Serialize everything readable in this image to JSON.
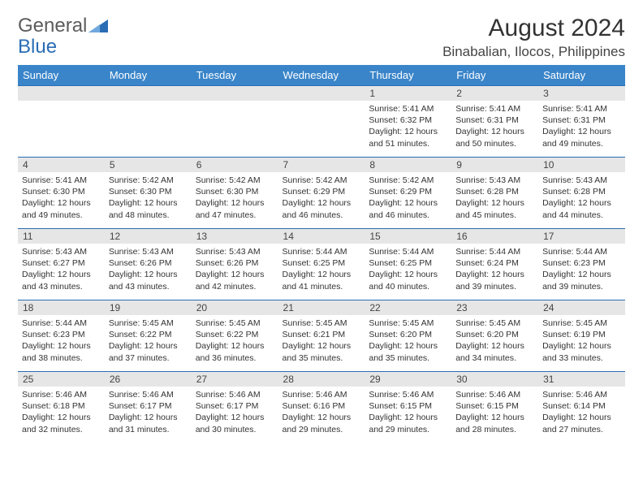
{
  "brand": {
    "text1": "General",
    "text2": "Blue",
    "text1_color": "#5c5c5c",
    "text2_color": "#2a6db5",
    "icon_color": "#2a6db5"
  },
  "title": "August 2024",
  "location": "Binabalian, Ilocos, Philippines",
  "weekday_headers": [
    "Sunday",
    "Monday",
    "Tuesday",
    "Wednesday",
    "Thursday",
    "Friday",
    "Saturday"
  ],
  "colors": {
    "header_bg": "#3a85c9",
    "header_text": "#ffffff",
    "cell_border": "#2a6db5",
    "daynum_bg": "#e6e6e6",
    "body_text": "#333333"
  },
  "typography": {
    "title_fontsize": 30,
    "location_fontsize": 17,
    "header_fontsize": 13,
    "daynum_fontsize": 12,
    "body_fontsize": 10.5
  },
  "weeks": [
    [
      {
        "num": "",
        "sunrise": "",
        "sunset": "",
        "daylight": ""
      },
      {
        "num": "",
        "sunrise": "",
        "sunset": "",
        "daylight": ""
      },
      {
        "num": "",
        "sunrise": "",
        "sunset": "",
        "daylight": ""
      },
      {
        "num": "",
        "sunrise": "",
        "sunset": "",
        "daylight": ""
      },
      {
        "num": "1",
        "sunrise": "Sunrise: 5:41 AM",
        "sunset": "Sunset: 6:32 PM",
        "daylight": "Daylight: 12 hours and 51 minutes."
      },
      {
        "num": "2",
        "sunrise": "Sunrise: 5:41 AM",
        "sunset": "Sunset: 6:31 PM",
        "daylight": "Daylight: 12 hours and 50 minutes."
      },
      {
        "num": "3",
        "sunrise": "Sunrise: 5:41 AM",
        "sunset": "Sunset: 6:31 PM",
        "daylight": "Daylight: 12 hours and 49 minutes."
      }
    ],
    [
      {
        "num": "4",
        "sunrise": "Sunrise: 5:41 AM",
        "sunset": "Sunset: 6:30 PM",
        "daylight": "Daylight: 12 hours and 49 minutes."
      },
      {
        "num": "5",
        "sunrise": "Sunrise: 5:42 AM",
        "sunset": "Sunset: 6:30 PM",
        "daylight": "Daylight: 12 hours and 48 minutes."
      },
      {
        "num": "6",
        "sunrise": "Sunrise: 5:42 AM",
        "sunset": "Sunset: 6:30 PM",
        "daylight": "Daylight: 12 hours and 47 minutes."
      },
      {
        "num": "7",
        "sunrise": "Sunrise: 5:42 AM",
        "sunset": "Sunset: 6:29 PM",
        "daylight": "Daylight: 12 hours and 46 minutes."
      },
      {
        "num": "8",
        "sunrise": "Sunrise: 5:42 AM",
        "sunset": "Sunset: 6:29 PM",
        "daylight": "Daylight: 12 hours and 46 minutes."
      },
      {
        "num": "9",
        "sunrise": "Sunrise: 5:43 AM",
        "sunset": "Sunset: 6:28 PM",
        "daylight": "Daylight: 12 hours and 45 minutes."
      },
      {
        "num": "10",
        "sunrise": "Sunrise: 5:43 AM",
        "sunset": "Sunset: 6:28 PM",
        "daylight": "Daylight: 12 hours and 44 minutes."
      }
    ],
    [
      {
        "num": "11",
        "sunrise": "Sunrise: 5:43 AM",
        "sunset": "Sunset: 6:27 PM",
        "daylight": "Daylight: 12 hours and 43 minutes."
      },
      {
        "num": "12",
        "sunrise": "Sunrise: 5:43 AM",
        "sunset": "Sunset: 6:26 PM",
        "daylight": "Daylight: 12 hours and 43 minutes."
      },
      {
        "num": "13",
        "sunrise": "Sunrise: 5:43 AM",
        "sunset": "Sunset: 6:26 PM",
        "daylight": "Daylight: 12 hours and 42 minutes."
      },
      {
        "num": "14",
        "sunrise": "Sunrise: 5:44 AM",
        "sunset": "Sunset: 6:25 PM",
        "daylight": "Daylight: 12 hours and 41 minutes."
      },
      {
        "num": "15",
        "sunrise": "Sunrise: 5:44 AM",
        "sunset": "Sunset: 6:25 PM",
        "daylight": "Daylight: 12 hours and 40 minutes."
      },
      {
        "num": "16",
        "sunrise": "Sunrise: 5:44 AM",
        "sunset": "Sunset: 6:24 PM",
        "daylight": "Daylight: 12 hours and 39 minutes."
      },
      {
        "num": "17",
        "sunrise": "Sunrise: 5:44 AM",
        "sunset": "Sunset: 6:23 PM",
        "daylight": "Daylight: 12 hours and 39 minutes."
      }
    ],
    [
      {
        "num": "18",
        "sunrise": "Sunrise: 5:44 AM",
        "sunset": "Sunset: 6:23 PM",
        "daylight": "Daylight: 12 hours and 38 minutes."
      },
      {
        "num": "19",
        "sunrise": "Sunrise: 5:45 AM",
        "sunset": "Sunset: 6:22 PM",
        "daylight": "Daylight: 12 hours and 37 minutes."
      },
      {
        "num": "20",
        "sunrise": "Sunrise: 5:45 AM",
        "sunset": "Sunset: 6:22 PM",
        "daylight": "Daylight: 12 hours and 36 minutes."
      },
      {
        "num": "21",
        "sunrise": "Sunrise: 5:45 AM",
        "sunset": "Sunset: 6:21 PM",
        "daylight": "Daylight: 12 hours and 35 minutes."
      },
      {
        "num": "22",
        "sunrise": "Sunrise: 5:45 AM",
        "sunset": "Sunset: 6:20 PM",
        "daylight": "Daylight: 12 hours and 35 minutes."
      },
      {
        "num": "23",
        "sunrise": "Sunrise: 5:45 AM",
        "sunset": "Sunset: 6:20 PM",
        "daylight": "Daylight: 12 hours and 34 minutes."
      },
      {
        "num": "24",
        "sunrise": "Sunrise: 5:45 AM",
        "sunset": "Sunset: 6:19 PM",
        "daylight": "Daylight: 12 hours and 33 minutes."
      }
    ],
    [
      {
        "num": "25",
        "sunrise": "Sunrise: 5:46 AM",
        "sunset": "Sunset: 6:18 PM",
        "daylight": "Daylight: 12 hours and 32 minutes."
      },
      {
        "num": "26",
        "sunrise": "Sunrise: 5:46 AM",
        "sunset": "Sunset: 6:17 PM",
        "daylight": "Daylight: 12 hours and 31 minutes."
      },
      {
        "num": "27",
        "sunrise": "Sunrise: 5:46 AM",
        "sunset": "Sunset: 6:17 PM",
        "daylight": "Daylight: 12 hours and 30 minutes."
      },
      {
        "num": "28",
        "sunrise": "Sunrise: 5:46 AM",
        "sunset": "Sunset: 6:16 PM",
        "daylight": "Daylight: 12 hours and 29 minutes."
      },
      {
        "num": "29",
        "sunrise": "Sunrise: 5:46 AM",
        "sunset": "Sunset: 6:15 PM",
        "daylight": "Daylight: 12 hours and 29 minutes."
      },
      {
        "num": "30",
        "sunrise": "Sunrise: 5:46 AM",
        "sunset": "Sunset: 6:15 PM",
        "daylight": "Daylight: 12 hours and 28 minutes."
      },
      {
        "num": "31",
        "sunrise": "Sunrise: 5:46 AM",
        "sunset": "Sunset: 6:14 PM",
        "daylight": "Daylight: 12 hours and 27 minutes."
      }
    ]
  ]
}
